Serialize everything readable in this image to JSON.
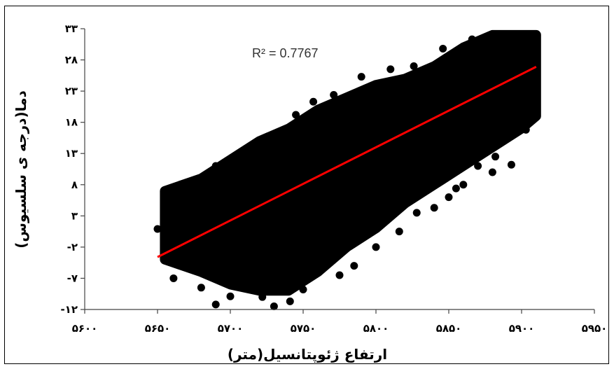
{
  "chart_data": {
    "type": "scatter",
    "title": "",
    "xlabel": "ارتفاع ژئوپتانسیل(متر)",
    "ylabel": "دما(درجه ی سلسیوس)",
    "xlim": [
      5600,
      5950
    ],
    "ylim": [
      -12,
      33
    ],
    "x_ticks": [
      5600,
      5650,
      5700,
      5750,
      5800,
      5850,
      5900,
      5950
    ],
    "y_ticks": [
      -12,
      -7,
      -2,
      3,
      8,
      13,
      18,
      23,
      28,
      33
    ],
    "x_tick_labels": [
      "۵۶۰۰",
      "۵۶۵۰",
      "۵۷۰۰",
      "۵۷۵۰",
      "۵۸۰۰",
      "۵۸۵۰",
      "۵۹۰۰",
      "۵۹۵۰"
    ],
    "y_tick_labels": [
      "-۱۲",
      "-۷",
      "-۲",
      "۳",
      "۸",
      "۱۳",
      "۱۸",
      "۲۳",
      "۲۸",
      "۳۳"
    ],
    "annotation": "R² = 0.7767",
    "r_squared": 0.7767,
    "grid": false,
    "legend": "none",
    "colors": {
      "points": "#000000",
      "trendline": "#ff0000"
    },
    "trendline": {
      "type": "linear",
      "x": [
        5650,
        5910
      ],
      "y": [
        -3.6,
        26.9
      ]
    },
    "cloud_envelope": {
      "x": [
        5655,
        5680,
        5700,
        5720,
        5740,
        5760,
        5780,
        5800,
        5820,
        5840,
        5860,
        5880,
        5900,
        5910
      ],
      "y_low": [
        -4,
        -6,
        -8,
        -9,
        -9,
        -6,
        -2,
        1,
        5,
        8,
        11,
        14,
        17,
        19
      ],
      "y_high": [
        7,
        9,
        12,
        15,
        17,
        20,
        22,
        24,
        25,
        27,
        30,
        32,
        32,
        32
      ]
    },
    "points": [
      {
        "x": 5650,
        "y": 0.9
      },
      {
        "x": 5661,
        "y": -7.0
      },
      {
        "x": 5664,
        "y": -4.4
      },
      {
        "x": 5662,
        "y": 5.7
      },
      {
        "x": 5667,
        "y": 8.0
      },
      {
        "x": 5672,
        "y": -3.1
      },
      {
        "x": 5680,
        "y": -8.5
      },
      {
        "x": 5690,
        "y": -11.2
      },
      {
        "x": 5700,
        "y": -9.9
      },
      {
        "x": 5712,
        "y": -8.0
      },
      {
        "x": 5722,
        "y": -10.0
      },
      {
        "x": 5730,
        "y": -11.5
      },
      {
        "x": 5741,
        "y": -10.7
      },
      {
        "x": 5750,
        "y": -8.8
      },
      {
        "x": 5760,
        "y": -6.0
      },
      {
        "x": 5690,
        "y": 11.0
      },
      {
        "x": 5704,
        "y": 12.5
      },
      {
        "x": 5730,
        "y": 15.5
      },
      {
        "x": 5745,
        "y": 19.2
      },
      {
        "x": 5757,
        "y": 21.3
      },
      {
        "x": 5771,
        "y": 22.4
      },
      {
        "x": 5790,
        "y": 25.3
      },
      {
        "x": 5810,
        "y": 26.5
      },
      {
        "x": 5826,
        "y": 27.0
      },
      {
        "x": 5846,
        "y": 29.8
      },
      {
        "x": 5866,
        "y": 31.3
      },
      {
        "x": 5886,
        "y": 31.7
      },
      {
        "x": 5903,
        "y": 31.8
      },
      {
        "x": 5907,
        "y": 29.5
      },
      {
        "x": 5910,
        "y": 24.5
      },
      {
        "x": 5903,
        "y": 16.8
      },
      {
        "x": 5882,
        "y": 12.5
      },
      {
        "x": 5870,
        "y": 11.0
      },
      {
        "x": 5860,
        "y": 8.0
      },
      {
        "x": 5850,
        "y": 6.0
      },
      {
        "x": 5840,
        "y": 4.3
      },
      {
        "x": 5828,
        "y": 3.5
      },
      {
        "x": 5816,
        "y": 0.5
      },
      {
        "x": 5800,
        "y": -2.0
      },
      {
        "x": 5785,
        "y": -5.0
      },
      {
        "x": 5775,
        "y": -6.5
      },
      {
        "x": 5893,
        "y": 11.2
      },
      {
        "x": 5880,
        "y": 10.0
      },
      {
        "x": 5855,
        "y": 7.4
      }
    ]
  }
}
